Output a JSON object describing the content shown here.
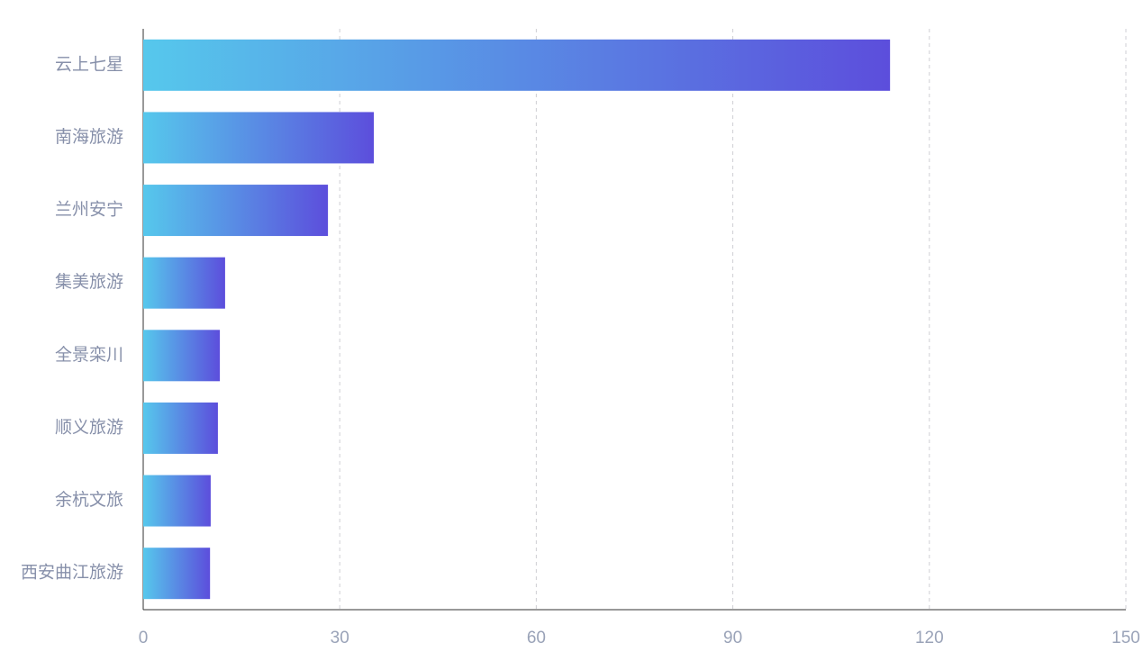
{
  "chart_data": {
    "type": "hbar",
    "categories": [
      "云上七星",
      "南海旅游",
      "兰州安宁",
      "集美旅游",
      "全景栾川",
      "顺义旅游",
      "余杭文旅",
      "西安曲江旅游"
    ],
    "values": [
      114,
      35.2,
      28.2,
      12.5,
      11.7,
      11.4,
      10.3,
      10.2
    ],
    "color": [
      "#56c8ec",
      "#5c4edc"
    ],
    "xlim": [
      0,
      150
    ],
    "xticks": [
      0,
      30,
      60,
      90,
      120,
      150
    ],
    "grid": true
  }
}
